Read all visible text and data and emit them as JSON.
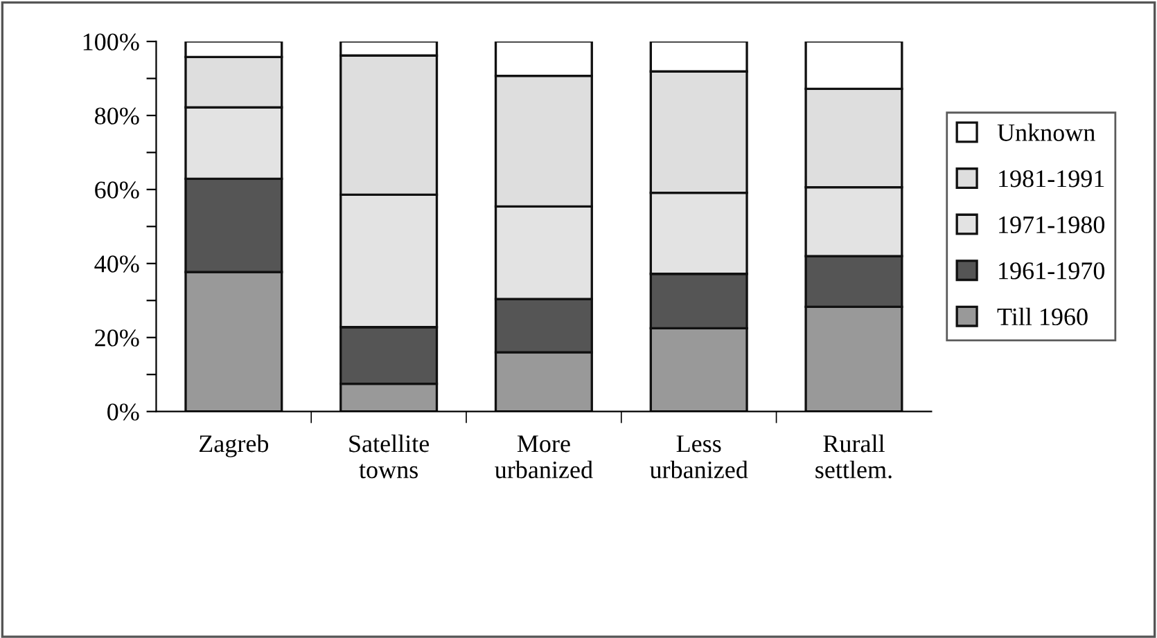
{
  "chart_data": {
    "type": "bar",
    "stacked": true,
    "categories": [
      "Zagreb",
      "Satellite\ntowns",
      "More\nurbanized",
      "Less\nurbanized",
      "Rurall\nsettlem."
    ],
    "series": [
      {
        "name": "Till 1960",
        "color": "#999999",
        "values": [
          37.7,
          7.5,
          16,
          22.5,
          28.3
        ]
      },
      {
        "name": "1961-1970",
        "color": "#555555",
        "values": [
          25.2,
          15.3,
          14.4,
          14.7,
          13.7
        ]
      },
      {
        "name": "1971-1980",
        "color": "#e3e3e3",
        "values": [
          19.3,
          35.8,
          25,
          21.9,
          18.6
        ]
      },
      {
        "name": "1981-1991",
        "color": "#dedede",
        "values": [
          13.6,
          37.6,
          35.3,
          32.8,
          26.6
        ]
      },
      {
        "name": "Unknown",
        "color": "#ffffff",
        "values": [
          4.2,
          3.8,
          9.3,
          8.1,
          12.8
        ]
      }
    ],
    "ylim": [
      0,
      100
    ],
    "yticks": [
      {
        "value": 0,
        "label": "0%"
      },
      {
        "value": 10,
        "label": null
      },
      {
        "value": 20,
        "label": "20%"
      },
      {
        "value": 30,
        "label": null
      },
      {
        "value": 40,
        "label": "40%"
      },
      {
        "value": 50,
        "label": null
      },
      {
        "value": 60,
        "label": "60%"
      },
      {
        "value": 70,
        "label": null
      },
      {
        "value": 80,
        "label": "80%"
      },
      {
        "value": 90,
        "label": null
      },
      {
        "value": 100,
        "label": "100%"
      }
    ],
    "grid": false,
    "legend": "right"
  }
}
